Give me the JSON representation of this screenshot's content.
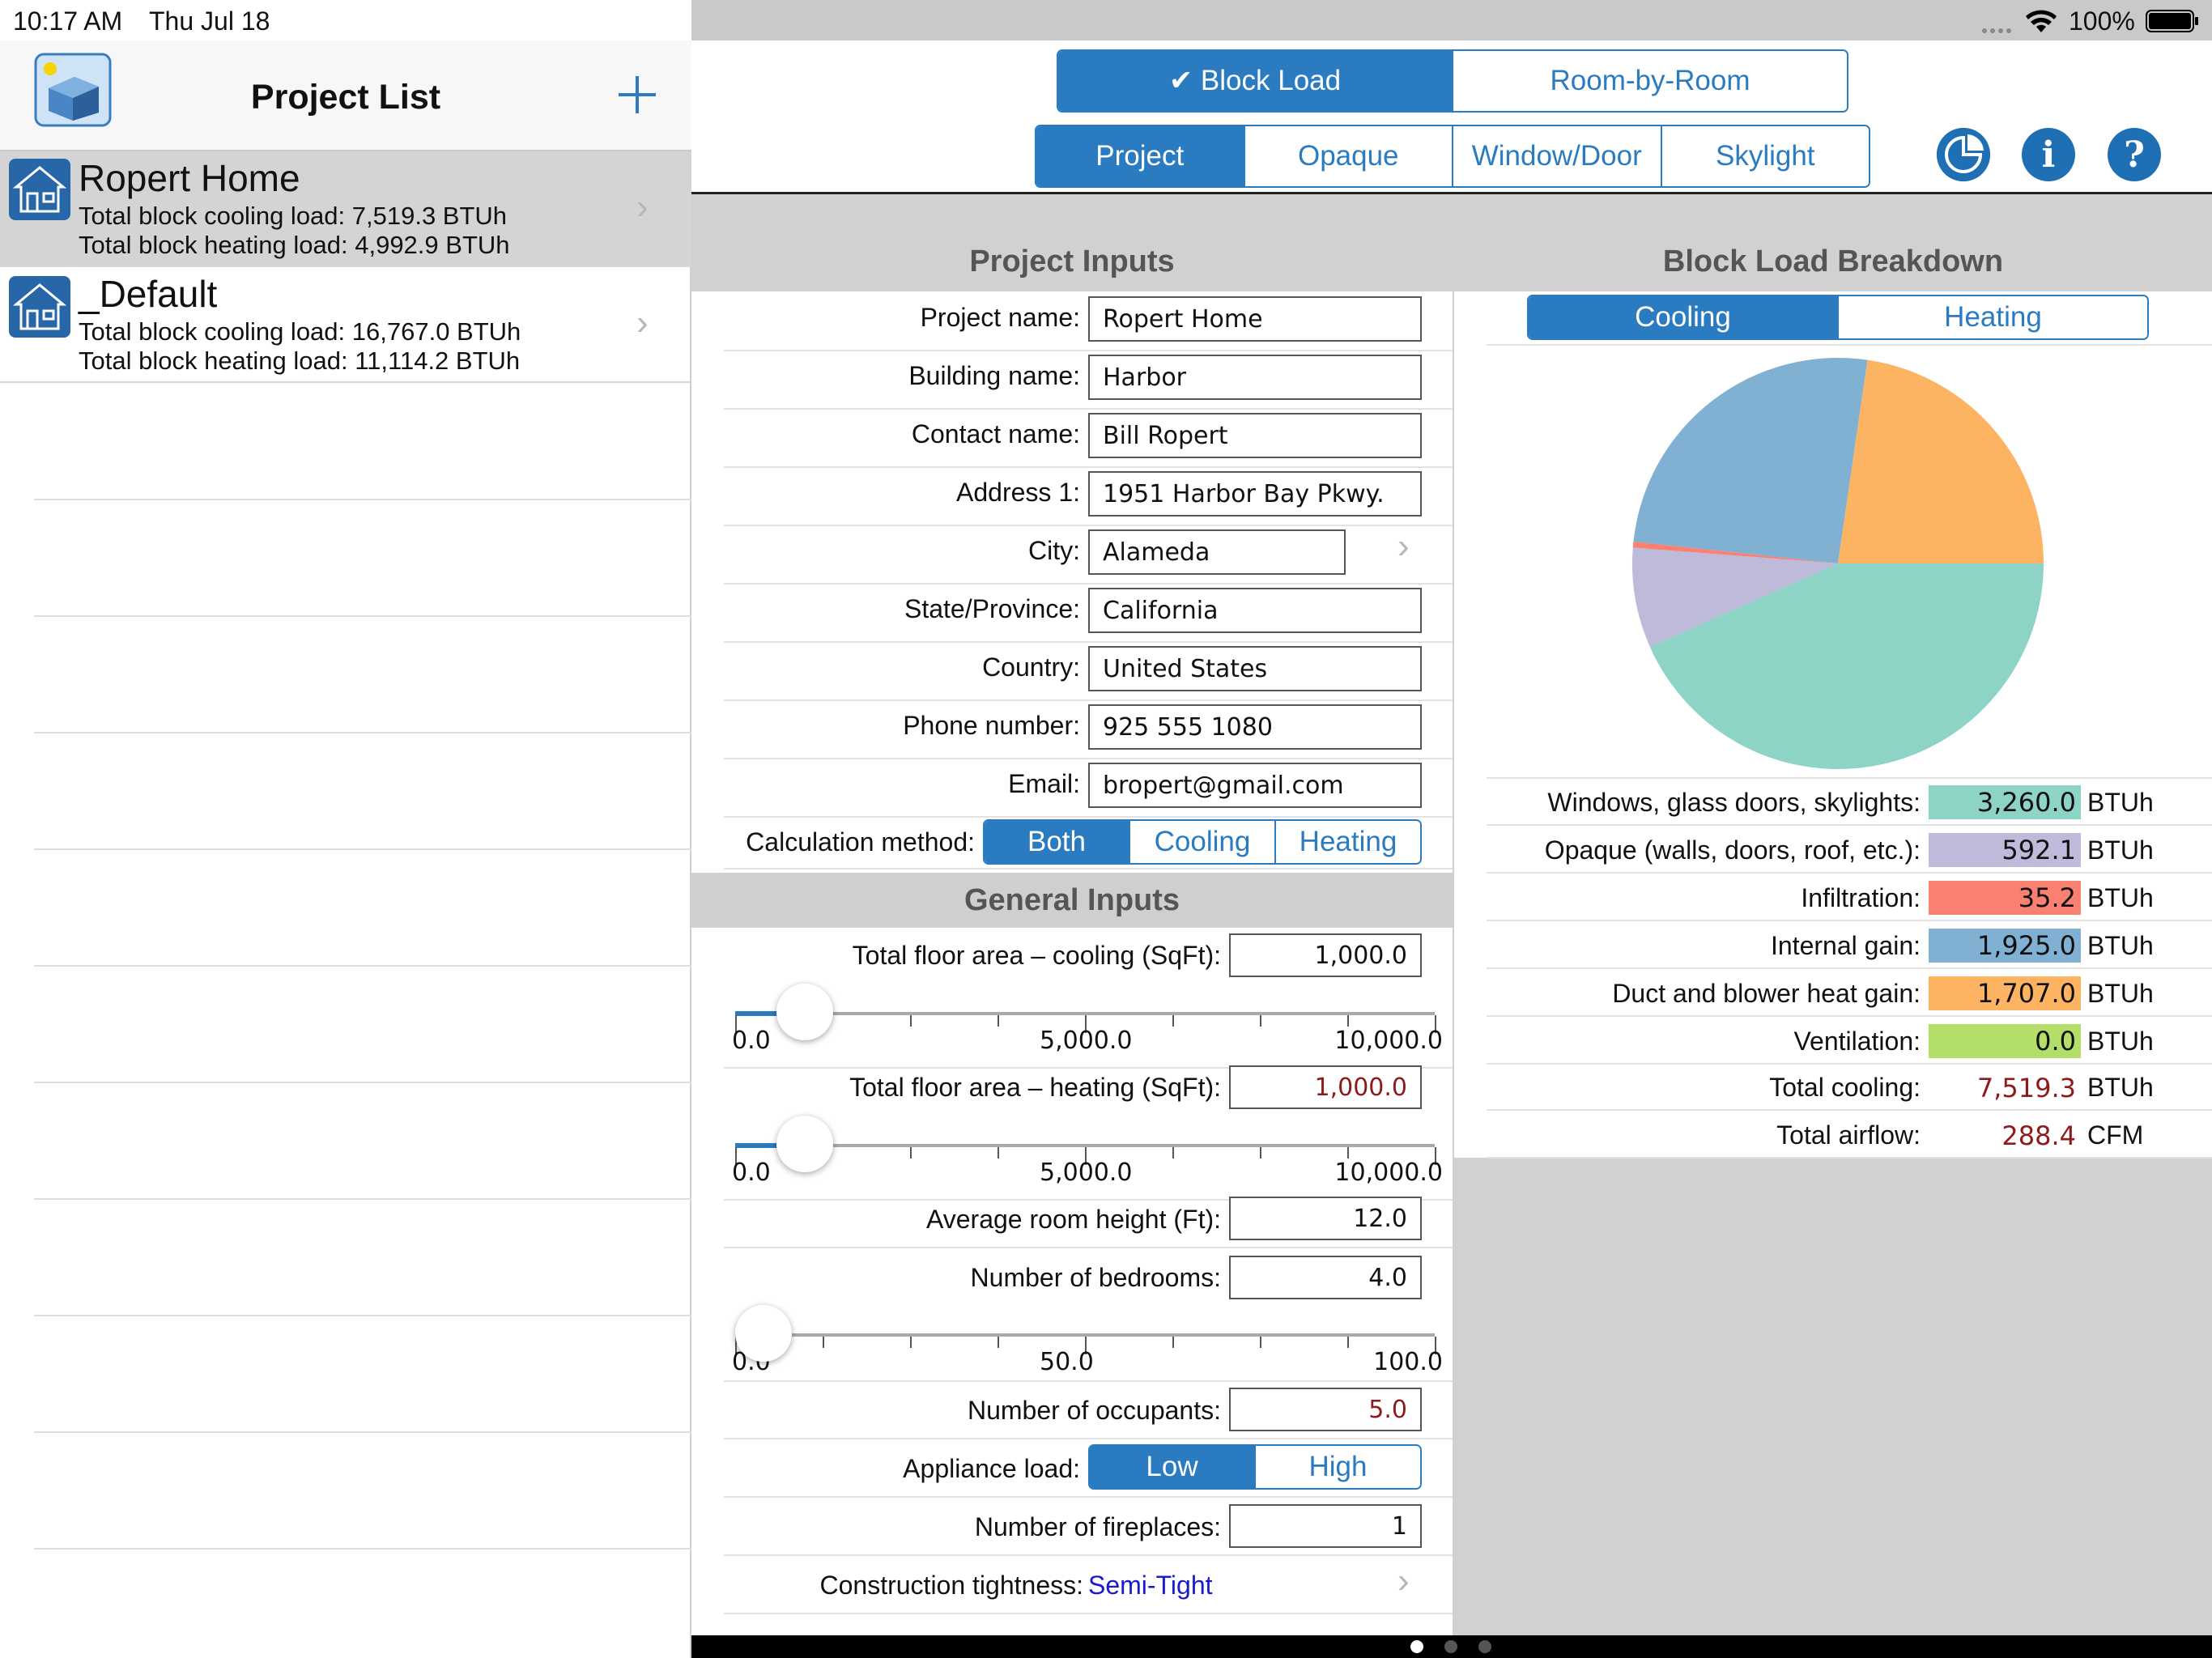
{
  "status": {
    "time": "10:17 AM",
    "date": "Thu Jul 18",
    "battery": "100%"
  },
  "sidebar": {
    "title": "Project List",
    "add_icon": "plus-icon",
    "projects": [
      {
        "name": "Ropert Home",
        "cooling": "Total block cooling load: 7,519.3 BTUh",
        "heating": "Total block heating load: 4,992.9 BTUh",
        "selected": true
      },
      {
        "name": "_Default",
        "cooling": "Total block cooling load: 16,767.0 BTUh",
        "heating": "Total block heating load: 11,114.2 BTUh",
        "selected": false
      }
    ]
  },
  "toolbar": {
    "mode_tabs": [
      "✔ Block Load",
      "Room-by-Room"
    ],
    "section_tabs": [
      "Project",
      "Opaque",
      "Window/Door",
      "Skylight"
    ],
    "buttons": [
      "pie-chart-icon",
      "info-icon",
      "help-icon"
    ],
    "info_glyph": "i",
    "help_glyph": "?"
  },
  "project_inputs": {
    "title": "Project Inputs",
    "fields": [
      {
        "label": "Project name:",
        "value": "Ropert Home"
      },
      {
        "label": "Building name:",
        "value": "Harbor"
      },
      {
        "label": "Contact name:",
        "value": "Bill Ropert"
      },
      {
        "label": "Address 1:",
        "value": "1951 Harbor Bay Pkwy."
      },
      {
        "label": "City:",
        "value": "Alameda"
      },
      {
        "label": "State/Province:",
        "value": "California"
      },
      {
        "label": "Country:",
        "value": "United States"
      },
      {
        "label": "Phone number:",
        "value": "925 555 1080"
      },
      {
        "label": "Email:",
        "value": "bropert@gmail.com"
      }
    ],
    "calc_method": {
      "label": "Calculation method:",
      "options": [
        "Both",
        "Cooling",
        "Heating"
      ],
      "selected": "Both"
    }
  },
  "general_inputs": {
    "title": "General Inputs",
    "floor_cooling": {
      "label": "Total floor area – cooling (SqFt):",
      "value": "1,000.0",
      "ticks": [
        "0.0",
        "5,000.0",
        "10,000.0"
      ],
      "fraction": 0.1
    },
    "floor_heating": {
      "label": "Total floor area – heating (SqFt):",
      "value": "1,000.0",
      "ticks": [
        "0.0",
        "5,000.0",
        "10,000.0"
      ],
      "fraction": 0.1
    },
    "room_height": {
      "label": "Average room height (Ft):",
      "value": "12.0"
    },
    "bedrooms": {
      "label": "Number of bedrooms:",
      "value": "4.0",
      "ticks": [
        "0.0",
        "50.0",
        "100.0"
      ],
      "fraction": 0.04
    },
    "occupants": {
      "label": "Number of occupants:",
      "value": "5.0"
    },
    "appliance": {
      "label": "Appliance load:",
      "options": [
        "Low",
        "High"
      ],
      "selected": "Low"
    },
    "fireplaces": {
      "label": "Number of fireplaces:",
      "value": "1"
    },
    "tightness": {
      "label": "Construction tightness:",
      "value": "Semi-Tight"
    }
  },
  "breakdown": {
    "title": "Block Load Breakdown",
    "tabs": [
      "Cooling",
      "Heating"
    ],
    "selected": "Cooling",
    "unit": "BTUh",
    "items": [
      {
        "label": "Windows, glass doors, skylights:",
        "value": "3,260.0",
        "num": 3260.0,
        "color": "#8dd4c6"
      },
      {
        "label": "Opaque (walls, doors, roof, etc.):",
        "value": "592.1",
        "num": 592.1,
        "color": "#bebada"
      },
      {
        "label": "Infiltration:",
        "value": "35.2",
        "num": 35.2,
        "color": "#fa8072"
      },
      {
        "label": "Internal gain:",
        "value": "1,925.0",
        "num": 1925.0,
        "color": "#80b1d3"
      },
      {
        "label": "Duct and blower heat gain:",
        "value": "1,707.0",
        "num": 1707.0,
        "color": "#fdb462"
      },
      {
        "label": "Ventilation:",
        "value": "0.0",
        "num": 0.0,
        "color": "#b3de69"
      }
    ],
    "total_cooling": {
      "label": "Total cooling:",
      "value": "7,519.3",
      "unit": "BTUh"
    },
    "total_airflow": {
      "label": "Total airflow:",
      "value": "288.4",
      "unit": "CFM"
    }
  }
}
